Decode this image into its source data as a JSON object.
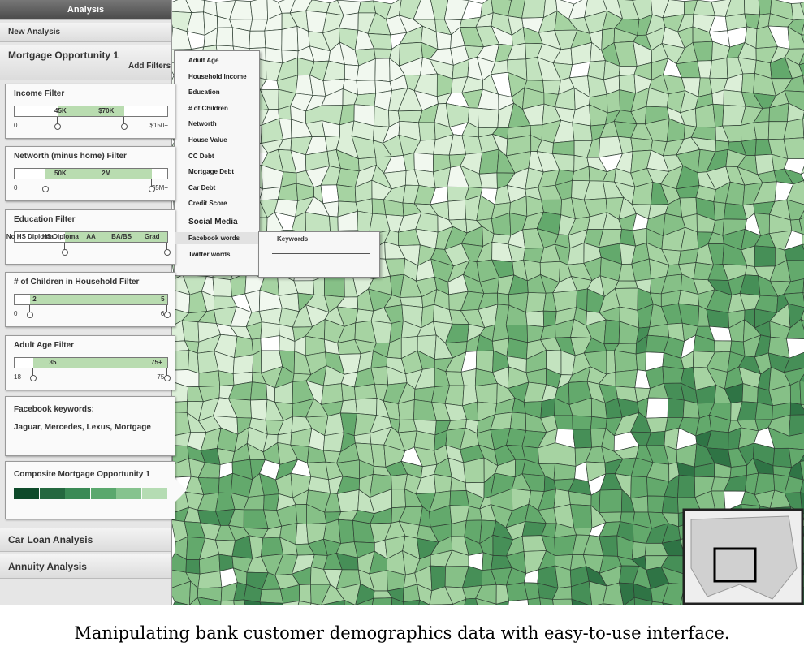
{
  "sidebar": {
    "header": "Analysis",
    "new_analysis": "New Analysis",
    "analysis_title": "Mortgage Opportunity 1",
    "add_filters": "Add Filters",
    "filters": [
      {
        "title": "Income Filter",
        "labels": [
          "45K",
          "$70K"
        ],
        "min": "0",
        "max": "$150+"
      },
      {
        "title": "Networth (minus home) Filter",
        "labels": [
          "50K",
          "2M"
        ],
        "min": "0",
        "max": "$5M+"
      },
      {
        "title": "Education Filter",
        "labels": [
          "No HS Diploma",
          "HS Diploma",
          "AA",
          "BA/BS",
          "Grad"
        ]
      },
      {
        "title": "# of Children in Household Filter",
        "labels": [
          "2",
          "5"
        ],
        "min": "0",
        "max": "6+"
      },
      {
        "title": "Adult Age Filter",
        "labels": [
          "35",
          "75+"
        ],
        "min": "18",
        "max": "75+"
      }
    ],
    "keywords_panel": {
      "title": "Facebook keywords:",
      "text": "Jaguar, Mercedes, Lexus, Mortgage"
    },
    "composite": {
      "title": "Composite Mortgage Opportunity 1"
    },
    "other_analyses": [
      "Car Loan Analysis",
      "Annuity Analysis"
    ]
  },
  "filter_menu": {
    "items": [
      "Adult Age",
      "Household Income",
      "Education",
      "# of Children",
      "Networth",
      "House Value",
      "CC Debt",
      "Mortgage Debt",
      "Car Debt",
      "Credit Score"
    ],
    "social_media": {
      "title": "Social Media",
      "items": [
        "Facebook words",
        "Twitter words"
      ]
    }
  },
  "keywords_popup": {
    "title": "Keywords"
  },
  "caption": "Manipulating bank customer demographics data with easy-to-use interface."
}
